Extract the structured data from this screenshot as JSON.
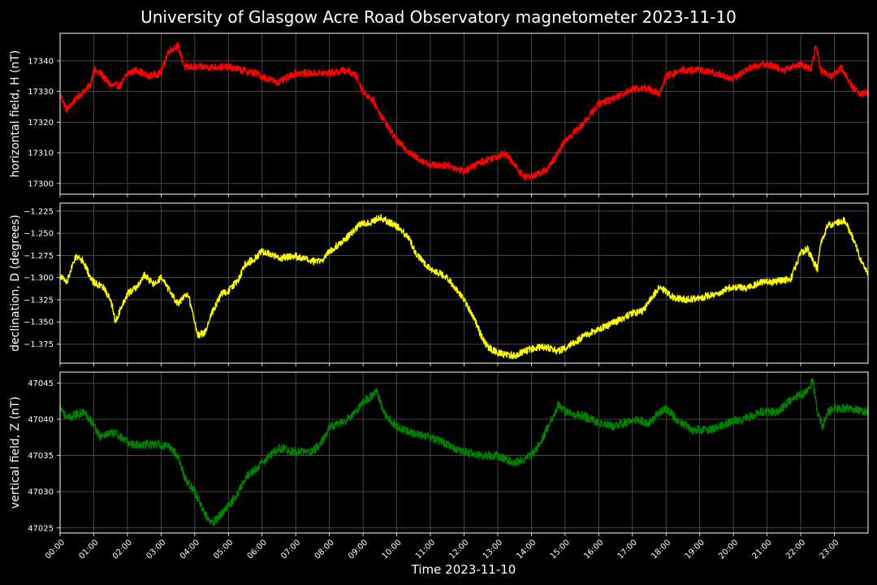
{
  "chart_data": {
    "type": "line",
    "title": "University of Glasgow Acre Road Observatory magnetometer 2023-11-10",
    "xlabel": "Time 2023-11-10",
    "xlim": [
      0,
      24
    ],
    "x_ticks": [
      "00:00",
      "01:00",
      "02:00",
      "03:00",
      "04:00",
      "05:00",
      "06:00",
      "07:00",
      "08:00",
      "09:00",
      "10:00",
      "11:00",
      "12:00",
      "13:00",
      "14:00",
      "15:00",
      "16:00",
      "17:00",
      "18:00",
      "19:00",
      "20:00",
      "21:00",
      "22:00",
      "23:00"
    ],
    "grid": true,
    "panels": [
      {
        "ylabel": "horizontal field, H (nT)",
        "color": "#ff0000",
        "ylim": [
          17296.5,
          17349
        ],
        "y_ticks": [
          17300,
          17310,
          17320,
          17330,
          17340
        ],
        "y_tick_labels": [
          "17300",
          "17310",
          "17320",
          "17330",
          "17340"
        ],
        "noise": 1.2,
        "x": [
          0,
          0.2,
          0.5,
          0.9,
          1.0,
          1.2,
          1.5,
          1.8,
          2.0,
          2.3,
          2.6,
          3.0,
          3.2,
          3.5,
          3.7,
          3.9,
          4.2,
          4.6,
          5.0,
          5.4,
          5.8,
          6.2,
          6.5,
          7.0,
          7.5,
          8.0,
          8.5,
          8.8,
          9.0,
          9.3,
          9.6,
          10.0,
          10.5,
          11.0,
          11.5,
          12.0,
          12.5,
          13.0,
          13.2,
          13.5,
          13.8,
          14.2,
          14.5,
          14.8,
          15.0,
          15.5,
          16.0,
          16.5,
          17.0,
          17.5,
          17.8,
          18.0,
          18.5,
          19.0,
          19.5,
          20.0,
          20.5,
          21.0,
          21.5,
          22.0,
          22.3,
          22.45,
          22.6,
          22.9,
          23.2,
          23.5,
          23.8,
          24.0
        ],
        "y": [
          17329,
          17324,
          17328,
          17332,
          17337,
          17336,
          17332,
          17332,
          17336,
          17337,
          17335,
          17336,
          17343,
          17345,
          17338,
          17338,
          17338,
          17338,
          17338,
          17337,
          17336,
          17334,
          17333,
          17336,
          17336,
          17336,
          17337,
          17335,
          17330,
          17327,
          17321,
          17314,
          17309,
          17306,
          17306,
          17304,
          17307,
          17309,
          17310,
          17306,
          17302,
          17303,
          17305,
          17310,
          17314,
          17319,
          17326,
          17328,
          17331,
          17331,
          17329,
          17335,
          17337,
          17337,
          17336,
          17334,
          17338,
          17339,
          17337,
          17339,
          17337,
          17345,
          17337,
          17335,
          17338,
          17332,
          17329,
          17330
        ]
      },
      {
        "ylabel": "declination, D (degrees)",
        "color": "#ffff00",
        "ylim": [
          -1.3965,
          -1.216
        ],
        "y_ticks": [
          -1.375,
          -1.35,
          -1.325,
          -1.3,
          -1.275,
          -1.25,
          -1.225
        ],
        "y_tick_labels": [
          "−1.375",
          "−1.350",
          "−1.325",
          "−1.300",
          "−1.275",
          "−1.250",
          "−1.225"
        ],
        "noise": 0.004,
        "x": [
          0,
          0.2,
          0.4,
          0.5,
          0.7,
          0.9,
          1.0,
          1.3,
          1.5,
          1.65,
          1.8,
          2.0,
          2.3,
          2.5,
          2.8,
          3.0,
          3.2,
          3.5,
          3.8,
          4.0,
          4.1,
          4.3,
          4.5,
          4.8,
          5.0,
          5.3,
          5.5,
          5.8,
          6.0,
          6.5,
          7.0,
          7.5,
          7.8,
          8.0,
          8.3,
          8.6,
          8.9,
          9.2,
          9.5,
          9.9,
          10.1,
          10.4,
          10.6,
          11.0,
          11.5,
          12.0,
          12.3,
          12.5,
          12.7,
          13.0,
          13.5,
          14.0,
          14.4,
          14.8,
          15.2,
          15.6,
          16.0,
          16.5,
          17.0,
          17.3,
          17.6,
          17.8,
          18.2,
          18.6,
          19.0,
          19.5,
          20.0,
          20.4,
          20.8,
          21.2,
          21.5,
          21.7,
          22.0,
          22.2,
          22.35,
          22.5,
          22.6,
          22.8,
          23.0,
          23.3,
          23.6,
          23.8,
          24.0
        ],
        "y": [
          -1.298,
          -1.305,
          -1.283,
          -1.275,
          -1.282,
          -1.3,
          -1.305,
          -1.312,
          -1.325,
          -1.35,
          -1.335,
          -1.318,
          -1.31,
          -1.297,
          -1.308,
          -1.3,
          -1.312,
          -1.33,
          -1.318,
          -1.35,
          -1.365,
          -1.362,
          -1.34,
          -1.318,
          -1.315,
          -1.302,
          -1.285,
          -1.278,
          -1.27,
          -1.278,
          -1.276,
          -1.282,
          -1.28,
          -1.27,
          -1.262,
          -1.252,
          -1.24,
          -1.238,
          -1.232,
          -1.24,
          -1.245,
          -1.258,
          -1.275,
          -1.29,
          -1.3,
          -1.325,
          -1.345,
          -1.365,
          -1.378,
          -1.385,
          -1.388,
          -1.38,
          -1.378,
          -1.383,
          -1.375,
          -1.365,
          -1.358,
          -1.35,
          -1.34,
          -1.338,
          -1.322,
          -1.31,
          -1.322,
          -1.325,
          -1.323,
          -1.318,
          -1.31,
          -1.312,
          -1.305,
          -1.305,
          -1.303,
          -1.302,
          -1.272,
          -1.268,
          -1.28,
          -1.29,
          -1.262,
          -1.24,
          -1.24,
          -1.235,
          -1.26,
          -1.283,
          -1.296
        ]
      },
      {
        "ylabel": "vertical field, Z (nT)",
        "color": "#008000",
        "ylim": [
          47024.3,
          47046.5
        ],
        "y_ticks": [
          47025,
          47030,
          47035,
          47040,
          47045
        ],
        "y_tick_labels": [
          "47025",
          "47030",
          "47035",
          "47040",
          "47045"
        ],
        "noise": 0.6,
        "x": [
          0,
          0.2,
          0.4,
          0.7,
          0.9,
          1.2,
          1.4,
          1.7,
          1.9,
          2.2,
          2.5,
          3.0,
          3.3,
          3.5,
          3.7,
          4.0,
          4.3,
          4.5,
          4.8,
          5.0,
          5.3,
          5.5,
          5.8,
          6.0,
          6.5,
          7.0,
          7.5,
          7.8,
          8.0,
          8.4,
          8.8,
          9.0,
          9.2,
          9.4,
          9.6,
          10.0,
          10.5,
          11.0,
          11.5,
          12.0,
          12.5,
          13.0,
          13.5,
          14.0,
          14.3,
          14.6,
          14.8,
          15.0,
          15.5,
          16.0,
          16.5,
          17.0,
          17.5,
          17.8,
          18.0,
          18.3,
          18.8,
          19.3,
          19.8,
          20.3,
          20.8,
          21.3,
          21.8,
          22.1,
          22.25,
          22.35,
          22.5,
          22.65,
          22.8,
          23.0,
          23.5,
          24.0
        ],
        "y": [
          47042,
          47040,
          47040.5,
          47041,
          47040,
          47037.5,
          47038,
          47038,
          47037,
          47036.5,
          47036.5,
          47036.5,
          47036,
          47035,
          47032,
          47030,
          47027,
          47025.5,
          47027,
          47028,
          47030,
          47032,
          47033,
          47034,
          47036,
          47035.5,
          47035.5,
          47037,
          47039,
          47039.5,
          47041,
          47042.5,
          47043,
          47044,
          47041,
          47039,
          47038,
          47037.5,
          47036.5,
          47035.5,
          47035,
          47035,
          47034,
          47035,
          47037,
          47040,
          47042,
          47041,
          47040.5,
          47039.5,
          47039,
          47040,
          47039.5,
          47041,
          47041.5,
          47040,
          47038.5,
          47038.5,
          47039.5,
          47040,
          47041,
          47041,
          47043,
          47043.5,
          47044,
          47045.5,
          47041,
          47039,
          47041,
          47041.5,
          47041.5,
          47041
        ]
      }
    ]
  }
}
